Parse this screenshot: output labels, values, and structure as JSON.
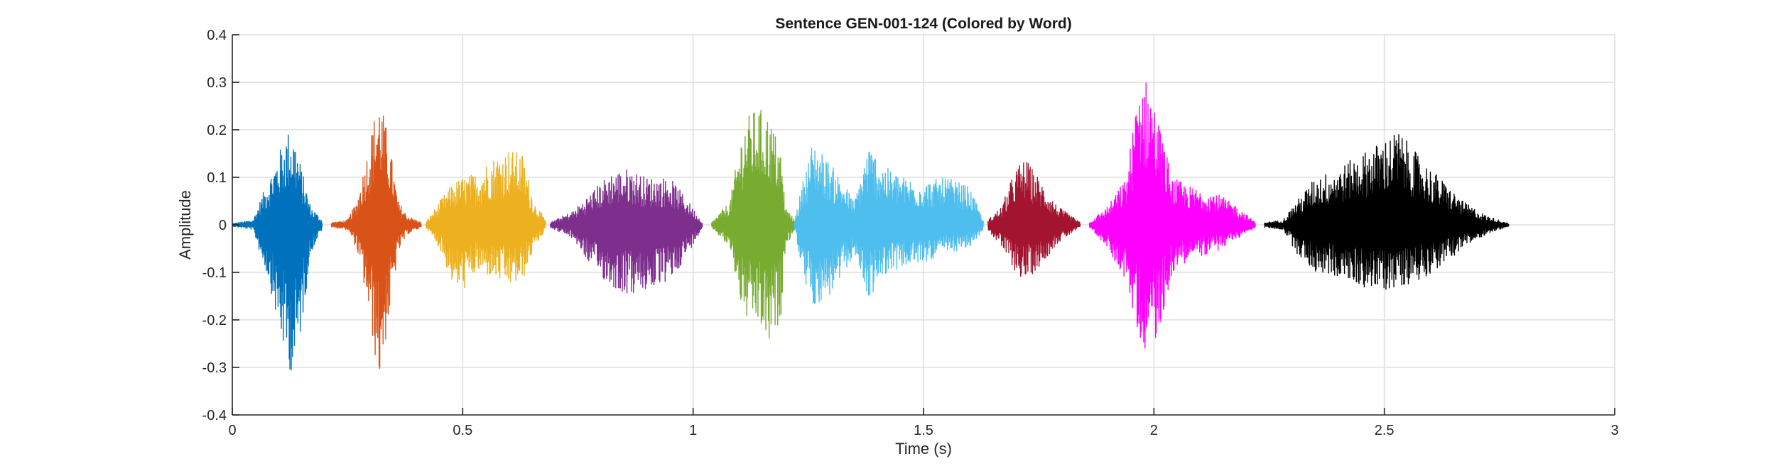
{
  "chart_data": {
    "type": "line",
    "title": "Sentence GEN-001-124 (Colored by Word)",
    "xlabel": "Time (s)",
    "ylabel": "Amplitude",
    "xlim": [
      0,
      3
    ],
    "ylim": [
      -0.4,
      0.4
    ],
    "xticks": [
      0,
      0.5,
      1,
      1.5,
      2,
      2.5,
      3
    ],
    "xtick_labels": [
      "0",
      "0.5",
      "1",
      "1.5",
      "2",
      "2.5",
      "3"
    ],
    "yticks": [
      0.4,
      0.3,
      0.2,
      0.1,
      0,
      -0.1,
      -0.2,
      -0.3,
      -0.4
    ],
    "ytick_labels": [
      "0.4",
      "0.3",
      "0.2",
      "0.1",
      "0",
      "-0.1",
      "-0.2",
      "-0.3",
      "-0.4"
    ],
    "grid": true,
    "series": [
      {
        "color": "#0072BD",
        "start": 0.0,
        "end": 0.195,
        "envelope": [
          [
            0.0,
            0.003,
            -0.003
          ],
          [
            0.045,
            0.01,
            -0.01
          ],
          [
            0.06,
            0.05,
            -0.06
          ],
          [
            0.08,
            0.1,
            -0.12
          ],
          [
            0.1,
            0.15,
            -0.22
          ],
          [
            0.12,
            0.2,
            -0.3
          ],
          [
            0.135,
            0.19,
            -0.32
          ],
          [
            0.15,
            0.12,
            -0.22
          ],
          [
            0.17,
            0.04,
            -0.06
          ],
          [
            0.195,
            0.01,
            -0.01
          ]
        ]
      },
      {
        "color": "#D95319",
        "start": 0.215,
        "end": 0.41,
        "envelope": [
          [
            0.215,
            0.005,
            -0.005
          ],
          [
            0.25,
            0.01,
            -0.01
          ],
          [
            0.27,
            0.05,
            -0.05
          ],
          [
            0.29,
            0.14,
            -0.15
          ],
          [
            0.31,
            0.24,
            -0.28
          ],
          [
            0.32,
            0.27,
            -0.33
          ],
          [
            0.34,
            0.18,
            -0.2
          ],
          [
            0.36,
            0.05,
            -0.06
          ],
          [
            0.38,
            0.02,
            -0.02
          ],
          [
            0.41,
            0.005,
            -0.005
          ]
        ]
      },
      {
        "color": "#EDB120",
        "start": 0.42,
        "end": 0.68,
        "envelope": [
          [
            0.42,
            0.005,
            -0.005
          ],
          [
            0.45,
            0.05,
            -0.05
          ],
          [
            0.48,
            0.09,
            -0.13
          ],
          [
            0.5,
            0.1,
            -0.14
          ],
          [
            0.53,
            0.11,
            -0.1
          ],
          [
            0.56,
            0.14,
            -0.11
          ],
          [
            0.6,
            0.16,
            -0.13
          ],
          [
            0.63,
            0.15,
            -0.12
          ],
          [
            0.655,
            0.05,
            -0.05
          ],
          [
            0.68,
            0.01,
            -0.01
          ]
        ]
      },
      {
        "color": "#7E2F8E",
        "start": 0.69,
        "end": 1.02,
        "envelope": [
          [
            0.69,
            0.005,
            -0.005
          ],
          [
            0.74,
            0.03,
            -0.03
          ],
          [
            0.78,
            0.07,
            -0.09
          ],
          [
            0.82,
            0.11,
            -0.13
          ],
          [
            0.86,
            0.12,
            -0.15
          ],
          [
            0.9,
            0.1,
            -0.14
          ],
          [
            0.95,
            0.1,
            -0.12
          ],
          [
            0.99,
            0.05,
            -0.06
          ],
          [
            1.02,
            0.005,
            -0.005
          ]
        ]
      },
      {
        "color": "#77AC30",
        "start": 1.04,
        "end": 1.22,
        "envelope": [
          [
            1.04,
            0.005,
            -0.005
          ],
          [
            1.08,
            0.05,
            -0.05
          ],
          [
            1.11,
            0.22,
            -0.2
          ],
          [
            1.14,
            0.25,
            -0.21
          ],
          [
            1.165,
            0.23,
            -0.26
          ],
          [
            1.19,
            0.16,
            -0.2
          ],
          [
            1.2,
            0.04,
            -0.05
          ],
          [
            1.22,
            0.01,
            -0.01
          ]
        ]
      },
      {
        "color": "#4DBEEE",
        "start": 1.22,
        "end": 1.63,
        "envelope": [
          [
            1.22,
            0.01,
            -0.01
          ],
          [
            1.24,
            0.1,
            -0.12
          ],
          [
            1.26,
            0.18,
            -0.17
          ],
          [
            1.29,
            0.14,
            -0.16
          ],
          [
            1.32,
            0.1,
            -0.12
          ],
          [
            1.35,
            0.05,
            -0.06
          ],
          [
            1.38,
            0.17,
            -0.16
          ],
          [
            1.42,
            0.12,
            -0.1
          ],
          [
            1.46,
            0.1,
            -0.09
          ],
          [
            1.5,
            0.09,
            -0.08
          ],
          [
            1.55,
            0.1,
            -0.06
          ],
          [
            1.6,
            0.08,
            -0.05
          ],
          [
            1.63,
            0.01,
            -0.01
          ]
        ]
      },
      {
        "color": "#A2142F",
        "start": 1.64,
        "end": 1.84,
        "envelope": [
          [
            1.64,
            0.01,
            -0.01
          ],
          [
            1.67,
            0.04,
            -0.05
          ],
          [
            1.7,
            0.12,
            -0.1
          ],
          [
            1.72,
            0.14,
            -0.12
          ],
          [
            1.75,
            0.1,
            -0.09
          ],
          [
            1.79,
            0.04,
            -0.04
          ],
          [
            1.84,
            0.005,
            -0.005
          ]
        ]
      },
      {
        "color": "#FF00FF",
        "start": 1.86,
        "end": 2.22,
        "envelope": [
          [
            1.86,
            0.005,
            -0.005
          ],
          [
            1.9,
            0.04,
            -0.05
          ],
          [
            1.94,
            0.1,
            -0.12
          ],
          [
            1.97,
            0.32,
            -0.25
          ],
          [
            1.99,
            0.3,
            -0.27
          ],
          [
            2.01,
            0.22,
            -0.23
          ],
          [
            2.04,
            0.1,
            -0.1
          ],
          [
            2.08,
            0.08,
            -0.07
          ],
          [
            2.13,
            0.07,
            -0.06
          ],
          [
            2.18,
            0.04,
            -0.03
          ],
          [
            2.22,
            0.005,
            -0.005
          ]
        ]
      },
      {
        "color": "#000000",
        "start": 2.24,
        "end": 2.77,
        "envelope": [
          [
            2.24,
            0.005,
            -0.005
          ],
          [
            2.28,
            0.01,
            -0.01
          ],
          [
            2.31,
            0.05,
            -0.06
          ],
          [
            2.35,
            0.1,
            -0.1
          ],
          [
            2.4,
            0.12,
            -0.11
          ],
          [
            2.45,
            0.15,
            -0.13
          ],
          [
            2.5,
            0.18,
            -0.14
          ],
          [
            2.53,
            0.2,
            -0.13
          ],
          [
            2.57,
            0.15,
            -0.12
          ],
          [
            2.62,
            0.1,
            -0.09
          ],
          [
            2.67,
            0.05,
            -0.05
          ],
          [
            2.72,
            0.02,
            -0.02
          ],
          [
            2.77,
            0.003,
            -0.003
          ]
        ]
      }
    ]
  }
}
